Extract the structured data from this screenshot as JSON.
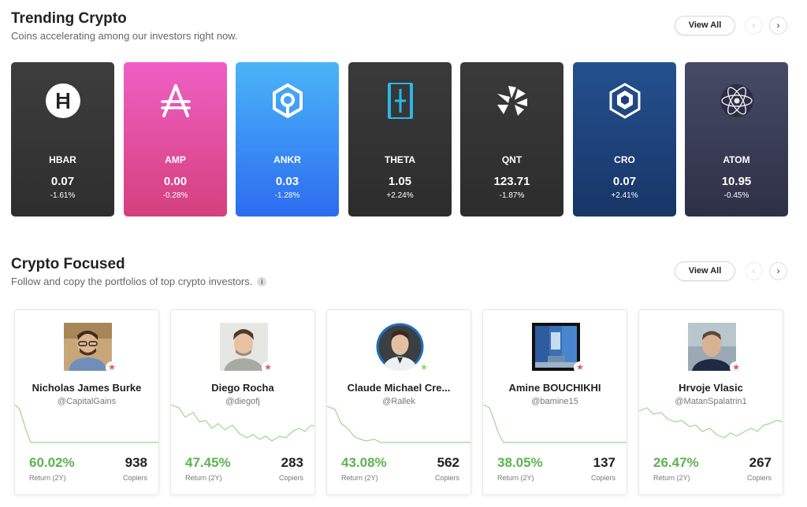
{
  "trending": {
    "title": "Trending Crypto",
    "subtitle": "Coins accelerating among our investors right now.",
    "view_all": "View All",
    "coins": [
      {
        "symbol": "HBAR",
        "price": "0.07",
        "change": "-1.61%",
        "icon": "hbar-icon",
        "color": "#3a3a3a"
      },
      {
        "symbol": "AMP",
        "price": "0.00",
        "change": "-0.28%",
        "icon": "amp-icon",
        "color": "#e1479a"
      },
      {
        "symbol": "ANKR",
        "price": "0.03",
        "change": "-1.28%",
        "icon": "ankr-icon",
        "color": "#2f82f6"
      },
      {
        "symbol": "THETA",
        "price": "1.05",
        "change": "+2.24%",
        "icon": "theta-icon",
        "color": "#333333"
      },
      {
        "symbol": "QNT",
        "price": "123.71",
        "change": "-1.87%",
        "icon": "qnt-icon",
        "color": "#333333"
      },
      {
        "symbol": "CRO",
        "price": "0.07",
        "change": "+2.41%",
        "icon": "cro-icon",
        "color": "#1d3f7c"
      },
      {
        "symbol": "ATOM",
        "price": "10.95",
        "change": "-0.45%",
        "icon": "atom-icon",
        "color": "#383a52"
      }
    ]
  },
  "focused": {
    "title": "Crypto Focused",
    "subtitle": "Follow and copy the portfolios of top crypto investors.",
    "info_icon": "i",
    "view_all": "View All",
    "return_label": "Return (2Y)",
    "copiers_label": "Copiers",
    "investors": [
      {
        "name": "Nicholas James Burke",
        "handle": "@CapitalGains",
        "return": "60.02%",
        "copiers": "938",
        "star_color": "#e05a5a"
      },
      {
        "name": "Diego Rocha",
        "handle": "@diegofj",
        "return": "47.45%",
        "copiers": "283",
        "star_color": "#e05a5a"
      },
      {
        "name": "Claude Michael Cre...",
        "handle": "@Rallek",
        "return": "43.08%",
        "copiers": "562",
        "star_color": "#9bd36a"
      },
      {
        "name": "Amine BOUCHIKHI",
        "handle": "@bamine15",
        "return": "38.05%",
        "copiers": "137",
        "star_color": "#e05a5a"
      },
      {
        "name": "Hrvoje Vlasic",
        "handle": "@MatanSpalatrin1",
        "return": "26.47%",
        "copiers": "267",
        "star_color": "#e05a5a"
      }
    ]
  },
  "colors": {
    "positive": "#5cb34f",
    "spark_line": "#9ed592"
  }
}
